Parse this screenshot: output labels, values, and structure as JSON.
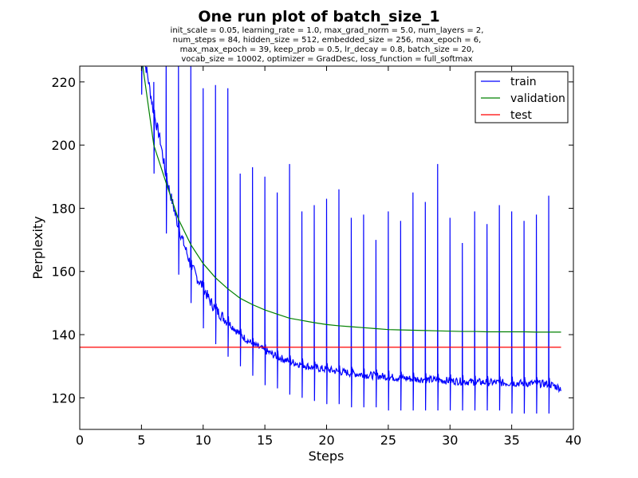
{
  "chart_data": {
    "type": "line",
    "title": "One run plot of batch_size_1",
    "subtitle_lines": [
      "init_scale = 0.05, learning_rate = 1.0, max_grad_norm = 5.0, num_layers = 2,",
      "num_steps = 84, hidden_size = 512, embedded_size = 256, max_epoch = 6,",
      "max_max_epoch = 39, keep_prob = 0.5, lr_decay = 0.8, batch_size = 20,",
      "vocab_size = 10002, optimizer = GradDesc, loss_function = full_softmax"
    ],
    "xlabel": "Steps",
    "ylabel": "Perplexity",
    "xlim": [
      0,
      40
    ],
    "ylim": [
      110,
      225
    ],
    "xticks": [
      0,
      5,
      10,
      15,
      20,
      25,
      30,
      35,
      40
    ],
    "yticks": [
      120,
      140,
      160,
      180,
      200,
      220
    ],
    "grid": false,
    "legend_position": "top-right",
    "series": [
      {
        "name": "train",
        "color": "#0000ff",
        "spikes": [
          [
            5,
            240,
            216
          ],
          [
            6,
            220,
            191
          ],
          [
            7,
            229,
            172
          ],
          [
            8,
            226,
            159
          ],
          [
            9,
            225,
            150
          ],
          [
            10,
            218,
            142
          ],
          [
            11,
            219,
            137
          ],
          [
            12,
            218,
            133
          ],
          [
            13,
            191,
            130
          ],
          [
            14,
            193,
            127
          ],
          [
            15,
            190,
            124
          ],
          [
            16,
            185,
            123
          ],
          [
            17,
            194,
            121
          ],
          [
            18,
            179,
            120
          ],
          [
            19,
            181,
            119
          ],
          [
            20,
            183,
            118
          ],
          [
            21,
            186,
            118
          ],
          [
            22,
            177,
            117
          ],
          [
            23,
            178,
            117
          ],
          [
            24,
            170,
            117
          ],
          [
            25,
            179,
            116
          ],
          [
            26,
            176,
            116
          ],
          [
            27,
            185,
            116
          ],
          [
            28,
            182,
            116
          ],
          [
            29,
            194,
            116
          ],
          [
            30,
            177,
            116
          ],
          [
            31,
            169,
            116
          ],
          [
            32,
            179,
            116
          ],
          [
            33,
            175,
            116
          ],
          [
            34,
            181,
            116
          ],
          [
            35,
            179,
            115
          ],
          [
            36,
            176,
            115
          ],
          [
            37,
            178,
            115
          ],
          [
            38,
            184,
            115
          ]
        ],
        "trend": [
          [
            5.1,
            230
          ],
          [
            5.5,
            222
          ],
          [
            6.0,
            210
          ],
          [
            6.5,
            202
          ],
          [
            7.0,
            190
          ],
          [
            7.5,
            182
          ],
          [
            8.0,
            174
          ],
          [
            8.5,
            168
          ],
          [
            9.0,
            162
          ],
          [
            9.5,
            158
          ],
          [
            10.0,
            155
          ],
          [
            10.5,
            151
          ],
          [
            11.0,
            148
          ],
          [
            11.5,
            146
          ],
          [
            12.0,
            144
          ],
          [
            13,
            140
          ],
          [
            14,
            137
          ],
          [
            15,
            135
          ],
          [
            16,
            133
          ],
          [
            17,
            131.5
          ],
          [
            18,
            130.5
          ],
          [
            19,
            129.5
          ],
          [
            20,
            129
          ],
          [
            21,
            128.3
          ],
          [
            22,
            127.8
          ],
          [
            23,
            127.3
          ],
          [
            24,
            127
          ],
          [
            25,
            126.6
          ],
          [
            26,
            126.3
          ],
          [
            27,
            126
          ],
          [
            28,
            125.8
          ],
          [
            29,
            125.6
          ],
          [
            30,
            125.4
          ],
          [
            31,
            125.2
          ],
          [
            32,
            125
          ],
          [
            33,
            124.9
          ],
          [
            34,
            124.8
          ],
          [
            35,
            124.7
          ],
          [
            36,
            124.6
          ],
          [
            37,
            124.5
          ],
          [
            38,
            124.4
          ],
          [
            39,
            123
          ]
        ]
      },
      {
        "name": "validation",
        "color": "#008000",
        "x": [
          5,
          6,
          7,
          8,
          9,
          10,
          11,
          12,
          13,
          14,
          15,
          16,
          17,
          18,
          19,
          20,
          21,
          22,
          23,
          24,
          25,
          26,
          27,
          28,
          29,
          30,
          31,
          32,
          33,
          34,
          35,
          36,
          37,
          38,
          39
        ],
        "values": [
          228,
          200,
          188,
          176.5,
          168.5,
          162.5,
          158,
          154.5,
          151.5,
          149.5,
          147.8,
          146.5,
          145.2,
          144.5,
          143.8,
          143.2,
          142.8,
          142.5,
          142.2,
          141.9,
          141.6,
          141.5,
          141.4,
          141.3,
          141.2,
          141.1,
          141.0,
          141.0,
          140.9,
          140.9,
          140.9,
          140.9,
          140.8,
          140.8,
          140.8
        ]
      },
      {
        "name": "test",
        "color": "#ff0000",
        "x": [
          0,
          39
        ],
        "values": [
          136,
          136
        ]
      }
    ]
  }
}
